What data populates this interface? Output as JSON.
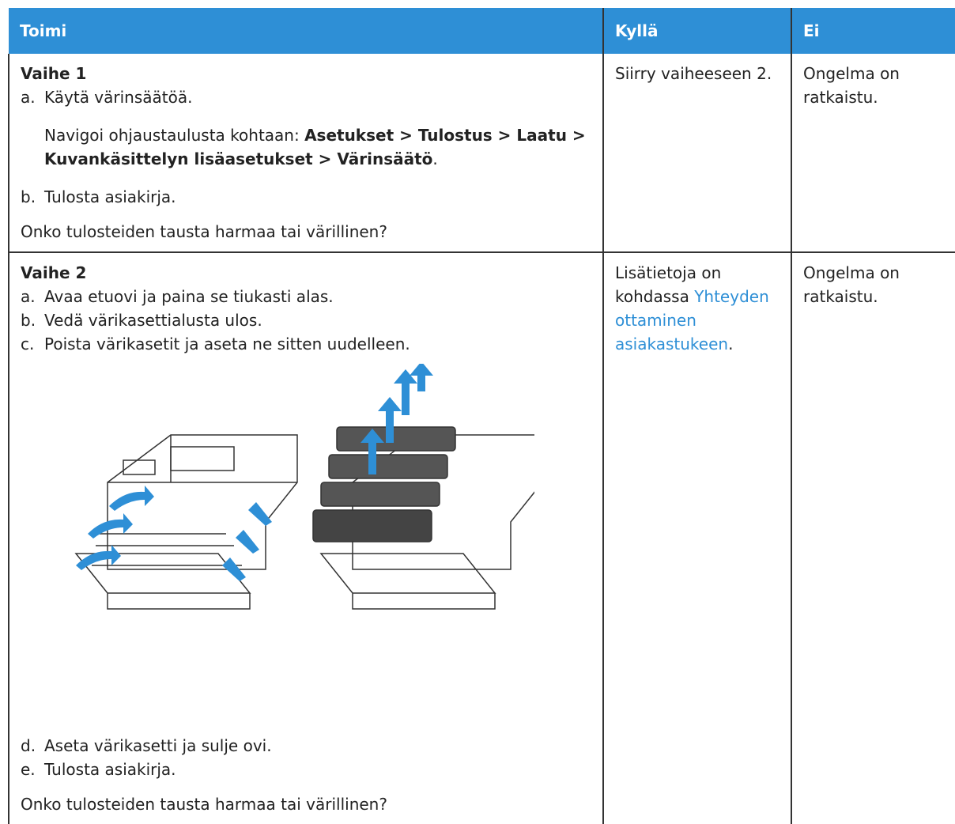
{
  "table": {
    "header": [
      "Toimi",
      "Kyllä",
      "Ei"
    ],
    "rows": [
      {
        "step": "Vaihe 1",
        "items_a": [
          {
            "marker": "a.",
            "text": "Käytä värinsäätöä."
          }
        ],
        "note": {
          "lead": "Navigoi ohjaustaulusta kohtaan: ",
          "path": "Asetukset > Tulostus > Laatu > Kuvankäsittelyn lisäasetukset > Värinsäätö",
          "end": "."
        },
        "items_b": [
          {
            "marker": "b.",
            "text": "Tulosta asiakirja."
          }
        ],
        "question": "Onko tulosteiden tausta harmaa tai värillinen?",
        "yes": {
          "text": "Siirry vaiheeseen 2."
        },
        "no": "Ongelma on ratkaistu."
      },
      {
        "step": "Vaihe 2",
        "items_a": [
          {
            "marker": "a.",
            "text": "Avaa etuovi ja paina se tiukasti alas."
          },
          {
            "marker": "b.",
            "text": "Vedä värikasettialusta ulos."
          },
          {
            "marker": "c.",
            "text": "Poista värikasetit ja aseta ne sitten uudelleen."
          }
        ],
        "items_b": [
          {
            "marker": "d.",
            "text": "Aseta värikasetti ja sulje ovi."
          },
          {
            "marker": "e.",
            "text": "Tulosta asiakirja."
          }
        ],
        "question": "Onko tulosteiden tausta harmaa tai värillinen?",
        "yes": {
          "lead": "Lisätietoja on kohdassa ",
          "link": "Yhteyden ottaminen asiakastukeen",
          "end": "."
        },
        "no": "Ongelma on ratkaistu."
      }
    ]
  }
}
